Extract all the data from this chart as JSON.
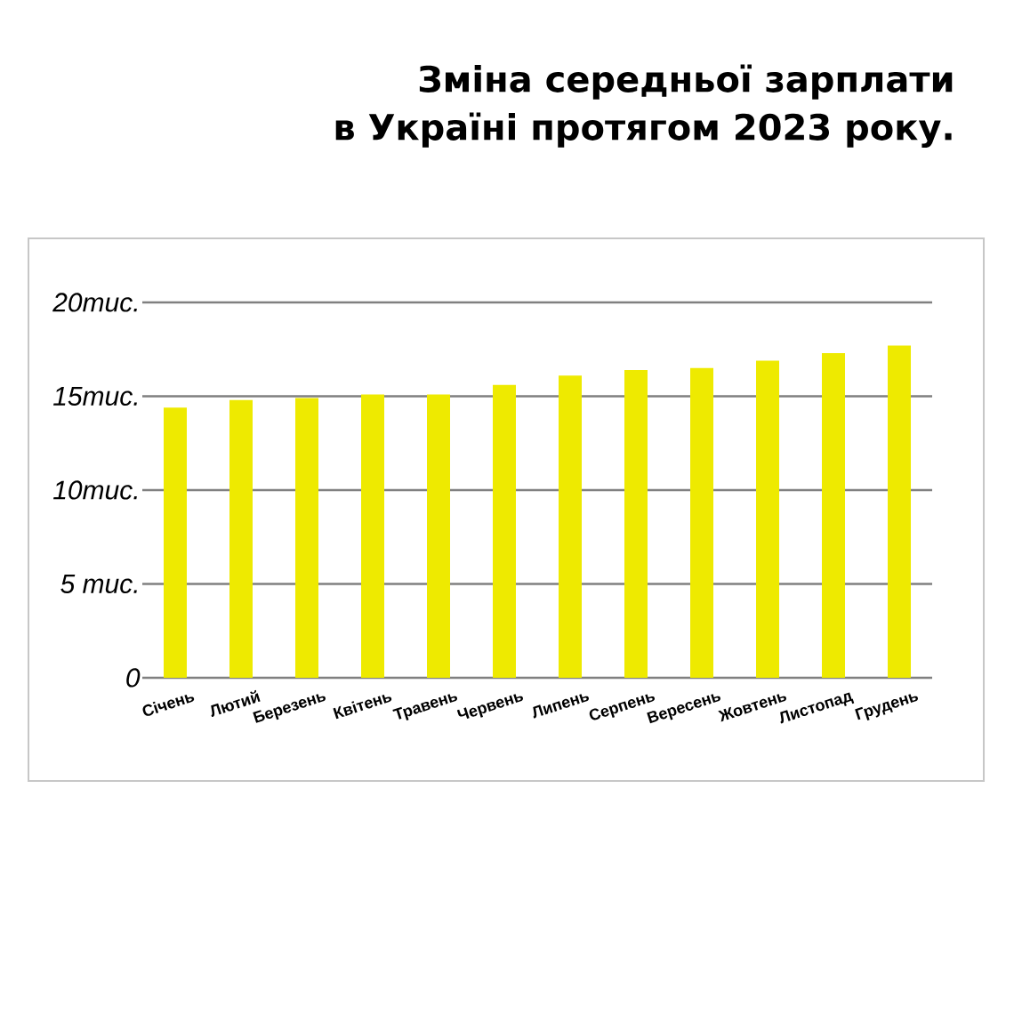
{
  "chart_data": {
    "type": "bar",
    "title": "Зміна середньої зарплати в Україні протягом 2023 року.",
    "categories": [
      "Січень",
      "Лютий",
      "Березень",
      "Квітень",
      "Травень",
      "Червень",
      "Липень",
      "Серпень",
      "Вересень",
      "Жовтень",
      "Листопад",
      "Грудень"
    ],
    "values": [
      14.4,
      14.8,
      14.9,
      15.1,
      15.1,
      15.6,
      16.1,
      16.4,
      16.5,
      16.9,
      17.3,
      17.7
    ],
    "color": "#eeea00",
    "ylim": [
      0,
      20
    ],
    "yticks": [
      0,
      {
        "value": 5,
        "label": "5 тис."
      },
      {
        "value": 10,
        "label": "10тис."
      },
      {
        "value": 15,
        "label": "15тис."
      },
      {
        "value": 20,
        "label": "20тис."
      }
    ],
    "grid": "y"
  }
}
